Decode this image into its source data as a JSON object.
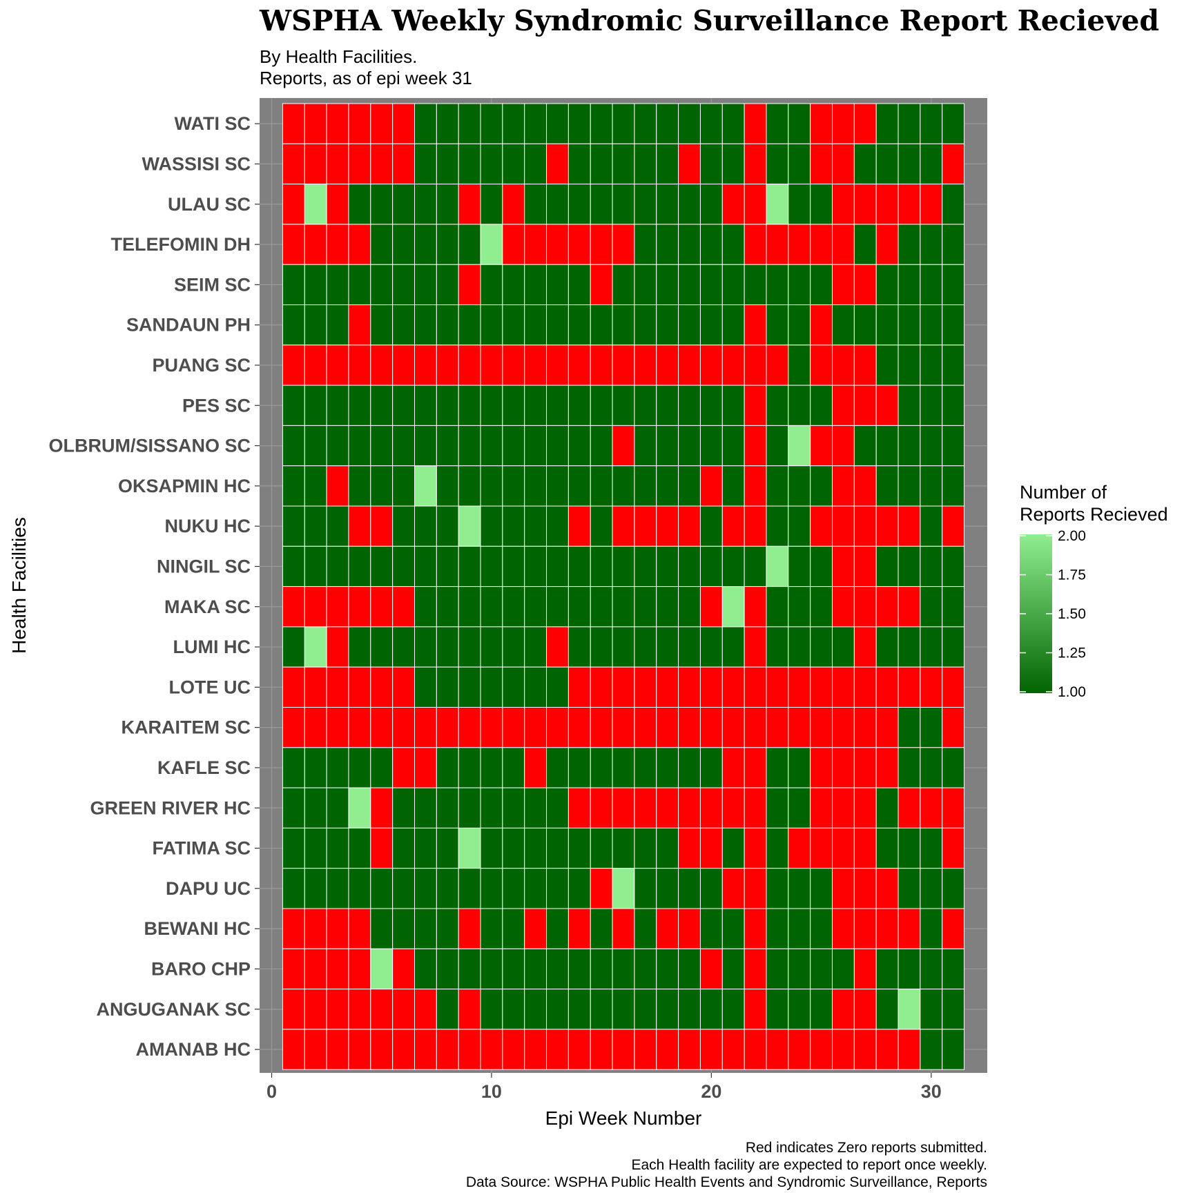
{
  "chart_data": {
    "type": "heatmap",
    "title": "WSPHA Weekly Syndromic Surveillance Report Recieved",
    "subtitle": [
      "By Health Facilities.",
      "Reports, as of epi week 31"
    ],
    "xlabel": "Epi Week Number",
    "ylabel": "Health Facilities",
    "x_ticks": [
      0,
      10,
      20,
      30
    ],
    "xlim": [
      -0.55,
      32.55
    ],
    "weeks": [
      1,
      31
    ],
    "legend": {
      "title": [
        "Number of",
        "Reports Recieved"
      ],
      "ticks": [
        "2.00",
        "1.75",
        "1.50",
        "1.25",
        "1.00"
      ],
      "range": [
        1,
        2
      ],
      "low_color": "#006400",
      "high_color": "#90EE90",
      "zero_color": "#FF0000"
    },
    "colors": {
      "panel_bg": "#808080",
      "grid": "#9a9a9a",
      "tile_border": "#ffffff"
    },
    "facilities": [
      "WATI SC",
      "WASSISI SC",
      "ULAU SC",
      "TELEFOMIN DH",
      "SEIM SC",
      "SANDAUN PH",
      "PUANG SC",
      "PES SC",
      "OLBRUM/SISSANO SC",
      "OKSAPMIN HC",
      "NUKU HC",
      "NINGIL SC",
      "MAKA SC",
      "LUMI HC",
      "LOTE UC",
      "KARAITEM SC",
      "KAFLE SC",
      "GREEN RIVER HC",
      "FATIMA SC",
      "DAPU UC",
      "BEWANI HC",
      "BARO CHP",
      "ANGUGANAK SC",
      "AMANAB HC"
    ],
    "values": [
      [
        0,
        0,
        0,
        0,
        0,
        0,
        1,
        1,
        1,
        1,
        1,
        1,
        1,
        1,
        1,
        1,
        1,
        1,
        1,
        1,
        1,
        0,
        1,
        1,
        0,
        0,
        0,
        1,
        1,
        1,
        1
      ],
      [
        0,
        0,
        0,
        0,
        0,
        0,
        1,
        1,
        1,
        1,
        1,
        1,
        0,
        1,
        1,
        1,
        1,
        1,
        0,
        1,
        1,
        0,
        1,
        1,
        0,
        0,
        1,
        1,
        1,
        1,
        0
      ],
      [
        0,
        2,
        0,
        1,
        1,
        1,
        1,
        1,
        0,
        1,
        0,
        1,
        1,
        1,
        1,
        1,
        1,
        1,
        1,
        1,
        0,
        0,
        2,
        1,
        1,
        0,
        0,
        0,
        0,
        0,
        1
      ],
      [
        0,
        0,
        0,
        0,
        1,
        1,
        1,
        1,
        1,
        2,
        0,
        0,
        0,
        0,
        0,
        0,
        1,
        1,
        1,
        1,
        1,
        0,
        0,
        0,
        0,
        0,
        1,
        0,
        1,
        1,
        1
      ],
      [
        1,
        1,
        1,
        1,
        1,
        1,
        1,
        1,
        0,
        1,
        1,
        1,
        1,
        1,
        0,
        1,
        1,
        1,
        1,
        1,
        1,
        1,
        1,
        1,
        1,
        0,
        0,
        1,
        1,
        1,
        1
      ],
      [
        1,
        1,
        1,
        0,
        1,
        1,
        1,
        1,
        1,
        1,
        1,
        1,
        1,
        1,
        1,
        1,
        1,
        1,
        1,
        1,
        1,
        0,
        1,
        1,
        0,
        1,
        1,
        1,
        1,
        1,
        1
      ],
      [
        0,
        0,
        0,
        0,
        0,
        0,
        0,
        0,
        0,
        0,
        0,
        0,
        0,
        0,
        0,
        0,
        0,
        0,
        0,
        0,
        0,
        0,
        0,
        1,
        0,
        0,
        0,
        1,
        1,
        1,
        1
      ],
      [
        1,
        1,
        1,
        1,
        1,
        1,
        1,
        1,
        1,
        1,
        1,
        1,
        1,
        1,
        1,
        1,
        1,
        1,
        1,
        1,
        1,
        0,
        1,
        1,
        1,
        0,
        0,
        0,
        1,
        1,
        1
      ],
      [
        1,
        1,
        1,
        1,
        1,
        1,
        1,
        1,
        1,
        1,
        1,
        1,
        1,
        1,
        1,
        0,
        1,
        1,
        1,
        1,
        1,
        0,
        1,
        2,
        0,
        0,
        1,
        1,
        1,
        1,
        1
      ],
      [
        1,
        1,
        0,
        1,
        1,
        1,
        2,
        1,
        1,
        1,
        1,
        1,
        1,
        1,
        1,
        1,
        1,
        1,
        1,
        0,
        1,
        0,
        1,
        1,
        1,
        0,
        0,
        1,
        1,
        1,
        1
      ],
      [
        1,
        1,
        1,
        0,
        0,
        1,
        1,
        1,
        2,
        1,
        1,
        1,
        1,
        0,
        1,
        0,
        0,
        0,
        0,
        1,
        0,
        0,
        1,
        1,
        0,
        0,
        0,
        0,
        0,
        1,
        0
      ],
      [
        1,
        1,
        1,
        1,
        1,
        1,
        1,
        1,
        1,
        1,
        1,
        1,
        1,
        1,
        1,
        1,
        1,
        1,
        1,
        1,
        1,
        1,
        2,
        1,
        1,
        0,
        0,
        1,
        1,
        1,
        1
      ],
      [
        0,
        0,
        0,
        0,
        0,
        0,
        1,
        1,
        1,
        1,
        1,
        1,
        1,
        1,
        1,
        1,
        1,
        1,
        1,
        0,
        2,
        0,
        1,
        1,
        1,
        0,
        0,
        0,
        0,
        1,
        1
      ],
      [
        1,
        2,
        0,
        1,
        1,
        1,
        1,
        1,
        1,
        1,
        1,
        1,
        0,
        1,
        1,
        1,
        1,
        1,
        1,
        1,
        1,
        0,
        1,
        1,
        1,
        1,
        0,
        1,
        1,
        1,
        1
      ],
      [
        0,
        0,
        0,
        0,
        0,
        0,
        1,
        1,
        1,
        1,
        1,
        1,
        1,
        0,
        0,
        0,
        0,
        0,
        0,
        0,
        0,
        0,
        0,
        0,
        0,
        0,
        0,
        0,
        0,
        0,
        0
      ],
      [
        0,
        0,
        0,
        0,
        0,
        0,
        0,
        0,
        0,
        0,
        0,
        0,
        0,
        0,
        0,
        0,
        0,
        0,
        0,
        0,
        0,
        0,
        0,
        0,
        0,
        0,
        0,
        0,
        1,
        1,
        0
      ],
      [
        1,
        1,
        1,
        1,
        1,
        0,
        0,
        1,
        1,
        1,
        1,
        0,
        1,
        1,
        1,
        1,
        1,
        1,
        1,
        1,
        0,
        0,
        1,
        1,
        0,
        0,
        0,
        0,
        1,
        1,
        1
      ],
      [
        1,
        1,
        1,
        2,
        0,
        1,
        1,
        1,
        1,
        1,
        1,
        1,
        1,
        0,
        0,
        0,
        0,
        0,
        0,
        0,
        0,
        0,
        1,
        1,
        0,
        0,
        0,
        1,
        0,
        0,
        0
      ],
      [
        1,
        1,
        1,
        1,
        0,
        1,
        1,
        1,
        2,
        1,
        1,
        1,
        1,
        1,
        1,
        1,
        1,
        1,
        0,
        0,
        1,
        0,
        1,
        0,
        0,
        0,
        0,
        1,
        1,
        1,
        0
      ],
      [
        1,
        1,
        1,
        1,
        1,
        1,
        1,
        1,
        1,
        1,
        1,
        1,
        1,
        1,
        0,
        2,
        1,
        1,
        1,
        1,
        0,
        0,
        1,
        1,
        1,
        0,
        0,
        0,
        1,
        1,
        1
      ],
      [
        0,
        0,
        0,
        0,
        1,
        1,
        1,
        1,
        0,
        1,
        1,
        0,
        1,
        0,
        1,
        0,
        1,
        0,
        0,
        1,
        1,
        0,
        1,
        1,
        1,
        0,
        0,
        0,
        0,
        1,
        0
      ],
      [
        0,
        0,
        0,
        0,
        2,
        0,
        1,
        1,
        1,
        1,
        1,
        1,
        1,
        1,
        1,
        1,
        1,
        1,
        1,
        0,
        1,
        0,
        1,
        1,
        1,
        1,
        0,
        1,
        1,
        1,
        1
      ],
      [
        0,
        0,
        0,
        0,
        0,
        0,
        0,
        1,
        0,
        1,
        1,
        1,
        1,
        1,
        1,
        1,
        1,
        1,
        1,
        1,
        1,
        0,
        1,
        1,
        1,
        0,
        0,
        1,
        2,
        1,
        1
      ],
      [
        0,
        0,
        0,
        0,
        0,
        0,
        0,
        0,
        0,
        0,
        0,
        0,
        0,
        0,
        0,
        0,
        0,
        0,
        0,
        0,
        0,
        0,
        0,
        0,
        0,
        0,
        0,
        0,
        0,
        1,
        1
      ]
    ],
    "caption": [
      "Red indicates Zero reports submitted.",
      "Each Health facility are expected to report once weekly.",
      "Data Source: WSPHA Public Health Events and Syndromic Surveillance, Reports"
    ]
  }
}
